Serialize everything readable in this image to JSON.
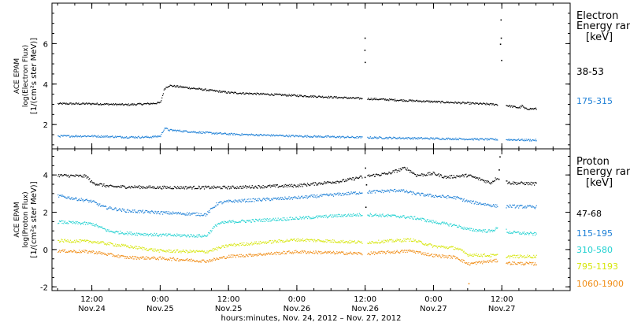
{
  "chart_data": [
    {
      "type": "scatter",
      "panel": "electron",
      "ylabel_lines": [
        "ACE EPAM",
        "log(Electron Flux)",
        "[1/(cm²s ster MeV)]"
      ],
      "legend_title_lines": [
        "Electron",
        "Energy ran"
      ],
      "legend_unit": "[keV]",
      "ylim": [
        0.8,
        8.0
      ],
      "yticks": [
        2,
        4,
        6
      ],
      "x_range_hours": [
        -7,
        84
      ],
      "series": [
        {
          "name": "38-53",
          "color": "#000000",
          "x": [
            -6,
            0,
            6,
            10,
            12,
            12.7,
            13.5,
            18,
            24,
            36,
            48,
            60,
            72,
            74,
            75,
            75.5,
            76,
            78
          ],
          "y": [
            3.05,
            3.05,
            3.0,
            3.05,
            3.1,
            3.8,
            3.95,
            3.8,
            3.6,
            3.45,
            3.3,
            3.15,
            3.0,
            2.9,
            2.85,
            2.95,
            2.8,
            2.8
          ]
        },
        {
          "name": "175-315",
          "color": "#1c7fd6",
          "x": [
            -6,
            0,
            6,
            10,
            12,
            12.7,
            13.5,
            18,
            24,
            36,
            48,
            60,
            72,
            78
          ],
          "y": [
            1.45,
            1.45,
            1.4,
            1.4,
            1.45,
            1.85,
            1.75,
            1.65,
            1.55,
            1.45,
            1.38,
            1.33,
            1.28,
            1.25
          ]
        }
      ],
      "spikes": [
        {
          "x": 47.8,
          "y": [
            6.3,
            5.7,
            5.1
          ],
          "series": "38-53"
        },
        {
          "x": 71.8,
          "y": [
            7.2,
            6.3,
            6.0,
            5.2
          ],
          "series": "38-53"
        }
      ]
    },
    {
      "type": "scatter",
      "panel": "proton",
      "ylabel_lines": [
        "ACE EPAM",
        "log(Proton Flux)",
        "[1/(cm²s ster MeV)]"
      ],
      "legend_title_lines": [
        "Proton",
        "Energy ran"
      ],
      "legend_unit": "[keV]",
      "ylim": [
        -2.2,
        5.4
      ],
      "yticks": [
        -2,
        0,
        2,
        4
      ],
      "x_range_hours": [
        -7,
        84
      ],
      "series": [
        {
          "name": "47-68",
          "color": "#000000",
          "x": [
            -6,
            -1,
            0,
            3,
            12,
            24,
            36,
            44,
            48,
            52,
            55,
            57,
            60,
            62,
            66,
            68,
            70,
            72,
            73,
            78
          ],
          "y": [
            4.0,
            3.95,
            3.6,
            3.4,
            3.35,
            3.35,
            3.45,
            3.7,
            3.95,
            4.1,
            4.4,
            4.0,
            4.1,
            3.9,
            4.0,
            3.8,
            3.6,
            4.1,
            3.6,
            3.55
          ]
        },
        {
          "name": "115-195",
          "color": "#1c7fd6",
          "x": [
            -6,
            0,
            2,
            6,
            12,
            20,
            22,
            24,
            30,
            36,
            44,
            48,
            54,
            57,
            60,
            64,
            66,
            70,
            72,
            73,
            78
          ],
          "y": [
            2.9,
            2.6,
            2.3,
            2.1,
            2.0,
            1.9,
            2.5,
            2.6,
            2.7,
            2.8,
            3.0,
            3.1,
            3.2,
            3.0,
            2.9,
            2.8,
            2.6,
            2.4,
            2.3,
            2.35,
            2.3
          ]
        },
        {
          "name": "310-580",
          "color": "#22d1d1",
          "x": [
            -6,
            0,
            3,
            6,
            12,
            20,
            22,
            24,
            36,
            44,
            48,
            54,
            57,
            60,
            64,
            66,
            70,
            72,
            73,
            78
          ],
          "y": [
            1.5,
            1.4,
            1.0,
            0.9,
            0.8,
            0.75,
            1.4,
            1.5,
            1.7,
            1.85,
            1.9,
            1.8,
            1.7,
            1.5,
            1.3,
            1.1,
            1.0,
            1.3,
            0.95,
            0.85
          ]
        },
        {
          "name": "795-1193",
          "color": "#d6e60a",
          "x": [
            -6,
            0,
            6,
            12,
            20,
            24,
            36,
            48,
            56,
            60,
            64,
            66,
            70,
            72,
            73,
            78
          ],
          "y": [
            0.5,
            0.45,
            0.2,
            -0.05,
            -0.1,
            0.25,
            0.55,
            0.4,
            0.55,
            0.2,
            0.1,
            -0.25,
            -0.3,
            -0.3,
            -0.35,
            -0.35
          ]
        },
        {
          "name": "1060-1900",
          "color": "#f08c14",
          "x": [
            -6,
            0,
            6,
            12,
            20,
            24,
            36,
            48,
            56,
            60,
            64,
            66,
            70,
            72,
            73,
            78
          ],
          "y": [
            -0.05,
            -0.1,
            -0.4,
            -0.45,
            -0.6,
            -0.35,
            -0.1,
            -0.2,
            -0.05,
            -0.3,
            -0.4,
            -0.75,
            -0.6,
            -0.55,
            -0.7,
            -0.75
          ]
        }
      ],
      "spikes": [
        {
          "x": 48.0,
          "y": [
            4.4,
            3.9,
            3.5,
            2.3
          ],
          "series": "47-68"
        },
        {
          "x": 71.5,
          "y": [
            5.0,
            4.3,
            3.8
          ],
          "series": "47-68"
        },
        {
          "x": 66.2,
          "y": [
            -1.8
          ],
          "series": "1060-1900"
        }
      ]
    }
  ],
  "x_axis": {
    "ticks": [
      {
        "hour": 0,
        "time": "12:00",
        "date": "Nov.24"
      },
      {
        "hour": 12,
        "time": "0:00",
        "date": "Nov.25"
      },
      {
        "hour": 24,
        "time": "12:00",
        "date": "Nov.25"
      },
      {
        "hour": 36,
        "time": "0:00",
        "date": "Nov.26"
      },
      {
        "hour": 48,
        "time": "12:00",
        "date": "Nov.26"
      },
      {
        "hour": 60,
        "time": "0:00",
        "date": "Nov.27"
      },
      {
        "hour": 72,
        "time": "12:00",
        "date": "Nov.27"
      }
    ],
    "xlabel": "hours:minutes, Nov. 24, 2012 – Nov. 27, 2012"
  }
}
